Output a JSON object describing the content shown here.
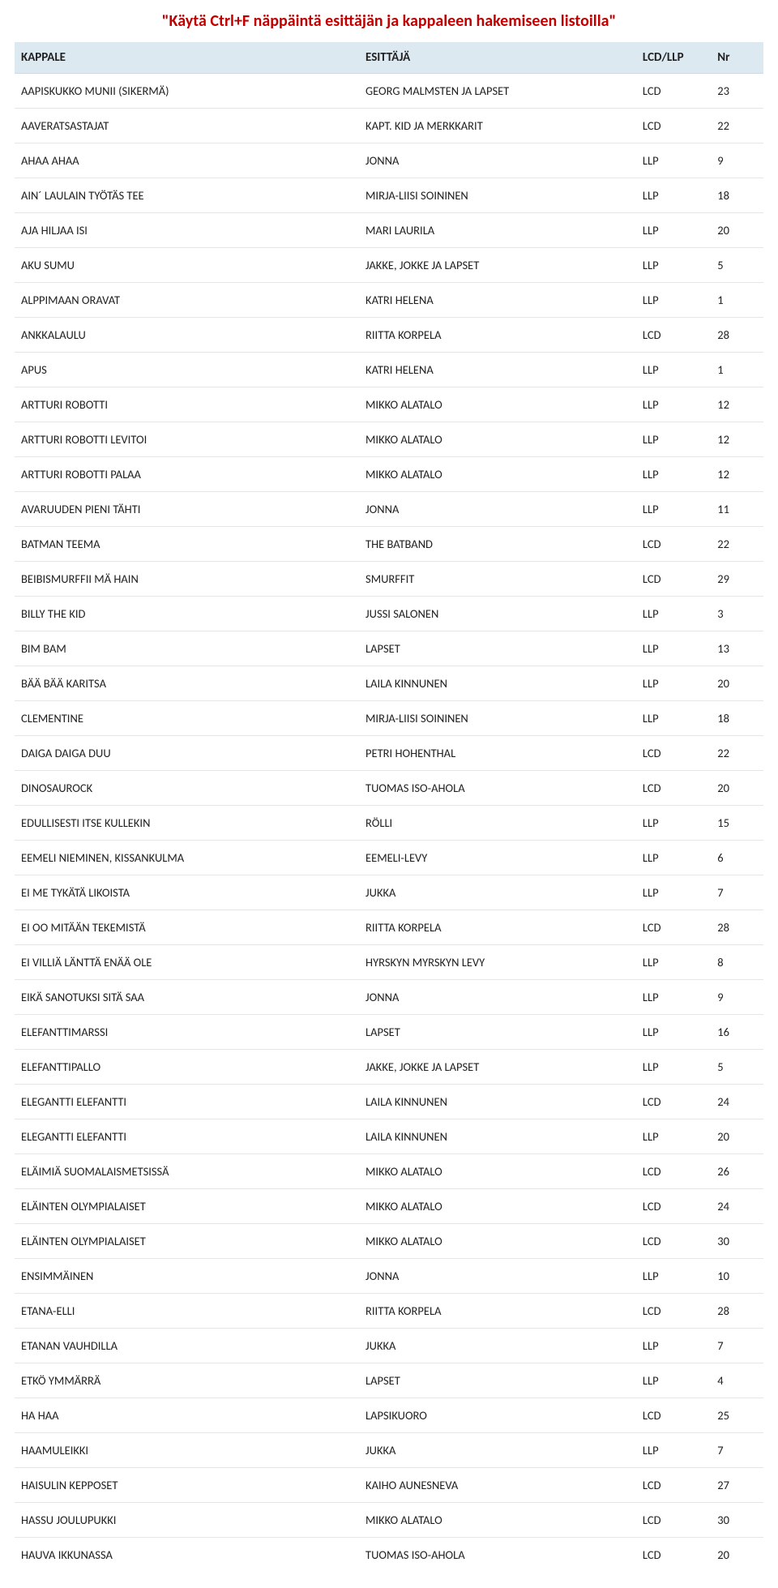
{
  "title": "\"Käytä Ctrl+F näppäintä esittäjän ja kappaleen hakemiseen listoilla\"",
  "colors": {
    "title_color": "#c00000",
    "header_bg": "#dce9f1",
    "row_border": "#e6e6e6",
    "text": "#222222",
    "background": "#ffffff"
  },
  "table": {
    "columns": [
      {
        "key": "kappale",
        "label": "KAPPALE"
      },
      {
        "key": "esittaja",
        "label": "ESITTÄJÄ"
      },
      {
        "key": "format",
        "label": "LCD/LLP"
      },
      {
        "key": "nr",
        "label": "Nr"
      }
    ],
    "rows": [
      {
        "kappale": "AAPISKUKKO MUNII (SIKERMÄ)",
        "esittaja": "GEORG MALMSTEN JA LAPSET",
        "format": "LCD",
        "nr": "23"
      },
      {
        "kappale": "AAVERATSASTAJAT",
        "esittaja": "KAPT. KID JA MERKKARIT",
        "format": "LCD",
        "nr": "22"
      },
      {
        "kappale": "AHAA AHAA",
        "esittaja": "JONNA",
        "format": "LLP",
        "nr": "9"
      },
      {
        "kappale": "AIN´ LAULAIN TYÖTÄS TEE",
        "esittaja": "MIRJA-LIISI SOININEN",
        "format": "LLP",
        "nr": "18"
      },
      {
        "kappale": "AJA HILJAA ISI",
        "esittaja": "MARI LAURILA",
        "format": "LLP",
        "nr": "20"
      },
      {
        "kappale": "AKU SUMU",
        "esittaja": "JAKKE, JOKKE JA LAPSET",
        "format": "LLP",
        "nr": "5"
      },
      {
        "kappale": "ALPPIMAAN ORAVAT",
        "esittaja": "KATRI HELENA",
        "format": "LLP",
        "nr": "1"
      },
      {
        "kappale": "ANKKALAULU",
        "esittaja": "RIITTA KORPELA",
        "format": "LCD",
        "nr": "28"
      },
      {
        "kappale": "APUS",
        "esittaja": "KATRI HELENA",
        "format": "LLP",
        "nr": "1"
      },
      {
        "kappale": "ARTTURI ROBOTTI",
        "esittaja": "MIKKO ALATALO",
        "format": "LLP",
        "nr": "12"
      },
      {
        "kappale": "ARTTURI ROBOTTI LEVITOI",
        "esittaja": "MIKKO ALATALO",
        "format": "LLP",
        "nr": "12"
      },
      {
        "kappale": "ARTTURI ROBOTTI PALAA",
        "esittaja": "MIKKO ALATALO",
        "format": "LLP",
        "nr": "12"
      },
      {
        "kappale": "AVARUUDEN PIENI TÄHTI",
        "esittaja": "JONNA",
        "format": "LLP",
        "nr": "11"
      },
      {
        "kappale": "BATMAN TEEMA",
        "esittaja": "THE BATBAND",
        "format": "LCD",
        "nr": "22"
      },
      {
        "kappale": "BEIBISMURFFII MÄ HAIN",
        "esittaja": "SMURFFIT",
        "format": "LCD",
        "nr": "29"
      },
      {
        "kappale": "BILLY THE KID",
        "esittaja": "JUSSI SALONEN",
        "format": "LLP",
        "nr": "3"
      },
      {
        "kappale": "BIM BAM",
        "esittaja": "LAPSET",
        "format": "LLP",
        "nr": "13"
      },
      {
        "kappale": "BÄÄ BÄÄ KARITSA",
        "esittaja": "LAILA KINNUNEN",
        "format": "LLP",
        "nr": "20"
      },
      {
        "kappale": "CLEMENTINE",
        "esittaja": "MIRJA-LIISI SOININEN",
        "format": "LLP",
        "nr": "18"
      },
      {
        "kappale": "DAIGA DAIGA DUU",
        "esittaja": "PETRI HOHENTHAL",
        "format": "LCD",
        "nr": "22"
      },
      {
        "kappale": "DINOSAUROCK",
        "esittaja": "TUOMAS ISO-AHOLA",
        "format": "LCD",
        "nr": "20"
      },
      {
        "kappale": "EDULLISESTI ITSE KULLEKIN",
        "esittaja": "RÖLLI",
        "format": "LLP",
        "nr": "15"
      },
      {
        "kappale": "EEMELI NIEMINEN, KISSANKULMA",
        "esittaja": "EEMELI-LEVY",
        "format": "LLP",
        "nr": "6"
      },
      {
        "kappale": "EI ME TYKÄTÄ LIKOISTA",
        "esittaja": "JUKKA",
        "format": "LLP",
        "nr": "7"
      },
      {
        "kappale": "EI OO MITÄÄN TEKEMISTÄ",
        "esittaja": "RIITTA KORPELA",
        "format": "LCD",
        "nr": "28"
      },
      {
        "kappale": "EI VILLIÄ LÄNTTÄ ENÄÄ OLE",
        "esittaja": "HYRSKYN MYRSKYN LEVY",
        "format": "LLP",
        "nr": "8"
      },
      {
        "kappale": "EIKÄ SANOTUKSI SITÄ SAA",
        "esittaja": "JONNA",
        "format": "LLP",
        "nr": "9"
      },
      {
        "kappale": "ELEFANTTIMARSSI",
        "esittaja": "LAPSET",
        "format": "LLP",
        "nr": "16"
      },
      {
        "kappale": "ELEFANTTIPALLO",
        "esittaja": "JAKKE, JOKKE JA LAPSET",
        "format": "LLP",
        "nr": "5"
      },
      {
        "kappale": "ELEGANTTI ELEFANTTI",
        "esittaja": "LAILA KINNUNEN",
        "format": "LCD",
        "nr": "24"
      },
      {
        "kappale": "ELEGANTTI ELEFANTTI",
        "esittaja": "LAILA KINNUNEN",
        "format": "LLP",
        "nr": "20"
      },
      {
        "kappale": "ELÄIMIÄ SUOMALAISMETSISSÄ",
        "esittaja": "MIKKO ALATALO",
        "format": "LCD",
        "nr": "26"
      },
      {
        "kappale": "ELÄINTEN OLYMPIALAISET",
        "esittaja": "MIKKO ALATALO",
        "format": "LCD",
        "nr": "24"
      },
      {
        "kappale": "ELÄINTEN OLYMPIALAISET",
        "esittaja": "MIKKO ALATALO",
        "format": "LCD",
        "nr": "30"
      },
      {
        "kappale": "ENSIMMÄINEN",
        "esittaja": "JONNA",
        "format": "LLP",
        "nr": "10"
      },
      {
        "kappale": "ETANA-ELLI",
        "esittaja": "RIITTA KORPELA",
        "format": "LCD",
        "nr": "28"
      },
      {
        "kappale": "ETANAN VAUHDILLA",
        "esittaja": "JUKKA",
        "format": "LLP",
        "nr": "7"
      },
      {
        "kappale": "ETKÖ YMMÄRRÄ",
        "esittaja": "LAPSET",
        "format": "LLP",
        "nr": "4"
      },
      {
        "kappale": "HA HAA",
        "esittaja": "LAPSIKUORO",
        "format": "LCD",
        "nr": "25"
      },
      {
        "kappale": "HAAMULEIKKI",
        "esittaja": "JUKKA",
        "format": "LLP",
        "nr": "7"
      },
      {
        "kappale": "HAISULIN KEPPOSET",
        "esittaja": "KAIHO AUNESNEVA",
        "format": "LCD",
        "nr": "27"
      },
      {
        "kappale": "HASSU JOULUPUKKI",
        "esittaja": "MIKKO ALATALO",
        "format": "LCD",
        "nr": "30"
      },
      {
        "kappale": "HAUVA IKKUNASSA",
        "esittaja": "TUOMAS ISO-AHOLA",
        "format": "LCD",
        "nr": "20"
      }
    ]
  }
}
